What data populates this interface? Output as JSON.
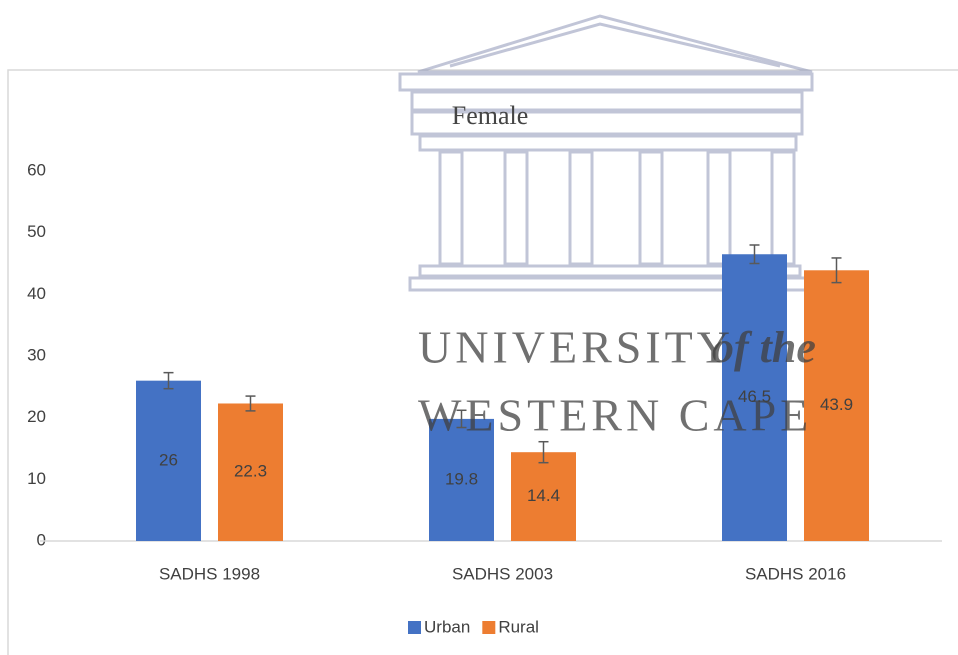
{
  "chart_data": {
    "type": "bar",
    "title": "Female",
    "categories": [
      "SADHS 1998",
      "SADHS 2003",
      "SADHS 2016"
    ],
    "series": [
      {
        "name": "Urban",
        "color": "#4472c4",
        "values": [
          26,
          19.8,
          46.5
        ],
        "errors": [
          1.3,
          1.4,
          1.5
        ]
      },
      {
        "name": "Rural",
        "color": "#ed7d31",
        "values": [
          22.3,
          14.4,
          43.9
        ],
        "errors": [
          1.2,
          1.7,
          2.0
        ]
      }
    ],
    "ylim": [
      0,
      60
    ],
    "yticks": [
      0,
      10,
      20,
      30,
      40,
      50,
      60
    ],
    "grid": false,
    "legend": "bottom",
    "watermark": [
      "UNIVERSITY",
      "of the",
      "WESTERN CAPE"
    ]
  }
}
